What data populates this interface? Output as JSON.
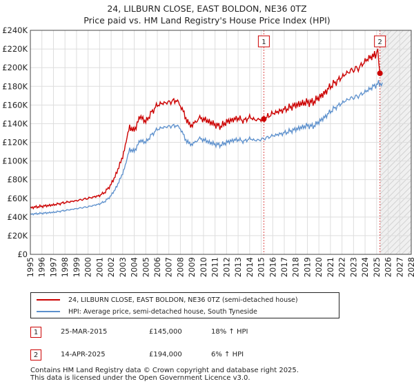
{
  "chart_data": {
    "type": "line",
    "title": "24, LILBURN CLOSE, EAST BOLDON, NE36 0TZ",
    "subtitle": "Price paid vs. HM Land Registry's House Price Index (HPI)",
    "xlabel": "",
    "ylabel": "",
    "xlim": [
      1995,
      2028
    ],
    "ylim": [
      0,
      240000
    ],
    "grid": true,
    "y_ticks": [
      "£0",
      "£20K",
      "£40K",
      "£60K",
      "£80K",
      "£100K",
      "£120K",
      "£140K",
      "£160K",
      "£180K",
      "£200K",
      "£220K",
      "£240K"
    ],
    "x_ticks": [
      "1995",
      "1996",
      "1997",
      "1998",
      "1999",
      "2000",
      "2001",
      "2002",
      "2003",
      "2004",
      "2005",
      "2006",
      "2007",
      "2008",
      "2009",
      "2010",
      "2011",
      "2012",
      "2013",
      "2014",
      "2015",
      "2016",
      "2017",
      "2018",
      "2019",
      "2020",
      "2021",
      "2022",
      "2023",
      "2024",
      "2025",
      "2026",
      "2027",
      "2028"
    ],
    "hatch_region": [
      2025.3,
      2028
    ],
    "series": [
      {
        "name": "24, LILBURN CLOSE, EAST BOLDON, NE36 0TZ (semi-detached house)",
        "color": "#cc0000",
        "x": [
          1995.0,
          1996.0,
          1997.0,
          1998.0,
          1999.0,
          2000.0,
          2001.0,
          2001.5,
          2002.0,
          2002.5,
          2003.0,
          2003.3,
          2003.6,
          2004.0,
          2004.5,
          2005.0,
          2005.5,
          2006.0,
          2006.5,
          2007.0,
          2007.6,
          2008.0,
          2008.4,
          2008.8,
          2009.2,
          2009.6,
          2010.0,
          2010.5,
          2011.0,
          2011.5,
          2012.0,
          2012.5,
          2013.0,
          2013.5,
          2014.0,
          2014.5,
          2015.23,
          2016.0,
          2017.0,
          2018.0,
          2019.0,
          2019.5,
          2020.0,
          2020.5,
          2021.0,
          2021.5,
          2022.0,
          2022.5,
          2023.0,
          2023.5,
          2024.0,
          2024.5,
          2024.9,
          2025.1,
          2025.29
        ],
        "values": [
          50000,
          51500,
          53000,
          55500,
          57500,
          60000,
          63000,
          67000,
          75000,
          88000,
          105000,
          120000,
          137000,
          132000,
          148000,
          142000,
          152000,
          160000,
          162000,
          163000,
          165000,
          160000,
          148000,
          138000,
          140000,
          146000,
          145000,
          142000,
          139000,
          137000,
          142000,
          144000,
          146000,
          143000,
          147000,
          144000,
          145000,
          151000,
          155000,
          160000,
          163000,
          163000,
          168000,
          173000,
          180000,
          185000,
          190000,
          195000,
          198000,
          200000,
          207000,
          212000,
          213000,
          218000,
          194000
        ]
      },
      {
        "name": "HPI: Average price, semi-detached house, South Tyneside",
        "color": "#5b8fcc",
        "x": [
          1995.0,
          1996.0,
          1997.0,
          1998.0,
          1999.0,
          2000.0,
          2001.0,
          2001.5,
          2002.0,
          2002.5,
          2003.0,
          2003.3,
          2003.6,
          2004.0,
          2004.5,
          2005.0,
          2005.5,
          2006.0,
          2006.5,
          2007.0,
          2007.6,
          2008.0,
          2008.4,
          2008.8,
          2009.2,
          2009.6,
          2010.0,
          2010.5,
          2011.0,
          2011.5,
          2012.0,
          2012.5,
          2013.0,
          2013.5,
          2014.0,
          2014.5,
          2015.0,
          2016.0,
          2017.0,
          2018.0,
          2019.0,
          2019.5,
          2020.0,
          2020.5,
          2021.0,
          2021.5,
          2022.0,
          2022.5,
          2023.0,
          2023.5,
          2024.0,
          2024.5,
          2025.0,
          2025.5
        ],
        "values": [
          43000,
          44000,
          45000,
          47000,
          49000,
          51000,
          54000,
          57000,
          63000,
          73000,
          87000,
          98000,
          113000,
          110000,
          122000,
          120000,
          128000,
          134000,
          136000,
          137000,
          138000,
          135000,
          124000,
          118000,
          119000,
          124000,
          123000,
          120000,
          118000,
          117000,
          120000,
          122000,
          123000,
          121000,
          124000,
          122000,
          123000,
          127000,
          130000,
          134000,
          138000,
          137000,
          142000,
          147000,
          153000,
          158000,
          162000,
          166000,
          168000,
          170000,
          174000,
          178000,
          182000,
          184000
        ]
      }
    ],
    "markers": [
      {
        "label": "1",
        "x": 2015.23,
        "y": 145000
      },
      {
        "label": "2",
        "x": 2025.29,
        "y": 194000
      }
    ]
  },
  "legend": {
    "property_label": "24, LILBURN CLOSE, EAST BOLDON, NE36 0TZ (semi-detached house)",
    "hpi_label": "HPI: Average price, semi-detached house, South Tyneside",
    "property_color": "#cc0000",
    "hpi_color": "#5b8fcc"
  },
  "transactions": [
    {
      "num": "1",
      "date": "25-MAR-2015",
      "price": "£145,000",
      "hpi": "18% ↑ HPI"
    },
    {
      "num": "2",
      "date": "14-APR-2025",
      "price": "£194,000",
      "hpi": "6% ↑ HPI"
    }
  ],
  "footer": {
    "line1": "Contains HM Land Registry data © Crown copyright and database right 2025.",
    "line2": "This data is licensed under the Open Government Licence v3.0."
  }
}
